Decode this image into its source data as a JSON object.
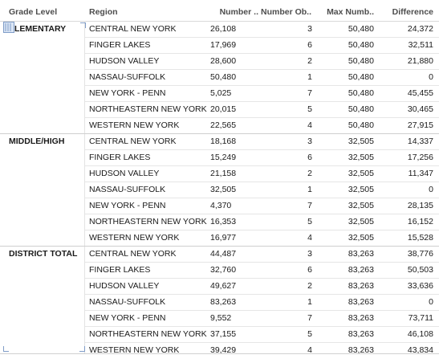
{
  "headers": {
    "grade_level": "Grade Level",
    "region": "Region",
    "number": "Number ..",
    "number_ob": "Number Ob..",
    "max_number": "Max Numb..",
    "difference": "Difference"
  },
  "groups": [
    {
      "label": "ELEMENTARY",
      "rows": [
        {
          "region": "CENTRAL NEW YORK",
          "number": "26,108",
          "number_ob": "3",
          "max": "50,480",
          "diff": "24,372"
        },
        {
          "region": "FINGER LAKES",
          "number": "17,969",
          "number_ob": "6",
          "max": "50,480",
          "diff": "32,511"
        },
        {
          "region": "HUDSON VALLEY",
          "number": "28,600",
          "number_ob": "2",
          "max": "50,480",
          "diff": "21,880"
        },
        {
          "region": "NASSAU-SUFFOLK",
          "number": "50,480",
          "number_ob": "1",
          "max": "50,480",
          "diff": "0"
        },
        {
          "region": "NEW YORK - PENN",
          "number": "5,025",
          "number_ob": "7",
          "max": "50,480",
          "diff": "45,455"
        },
        {
          "region": "NORTHEASTERN NEW YORK",
          "number": "20,015",
          "number_ob": "5",
          "max": "50,480",
          "diff": "30,465"
        },
        {
          "region": "WESTERN NEW YORK",
          "number": "22,565",
          "number_ob": "4",
          "max": "50,480",
          "diff": "27,915"
        }
      ]
    },
    {
      "label": "MIDDLE/HIGH",
      "rows": [
        {
          "region": "CENTRAL NEW YORK",
          "number": "18,168",
          "number_ob": "3",
          "max": "32,505",
          "diff": "14,337"
        },
        {
          "region": "FINGER LAKES",
          "number": "15,249",
          "number_ob": "6",
          "max": "32,505",
          "diff": "17,256"
        },
        {
          "region": "HUDSON VALLEY",
          "number": "21,158",
          "number_ob": "2",
          "max": "32,505",
          "diff": "11,347"
        },
        {
          "region": "NASSAU-SUFFOLK",
          "number": "32,505",
          "number_ob": "1",
          "max": "32,505",
          "diff": "0"
        },
        {
          "region": "NEW YORK - PENN",
          "number": "4,370",
          "number_ob": "7",
          "max": "32,505",
          "diff": "28,135"
        },
        {
          "region": "NORTHEASTERN NEW YORK",
          "number": "16,353",
          "number_ob": "5",
          "max": "32,505",
          "diff": "16,152"
        },
        {
          "region": "WESTERN NEW YORK",
          "number": "16,977",
          "number_ob": "4",
          "max": "32,505",
          "diff": "15,528"
        }
      ]
    },
    {
      "label": "DISTRICT TOTAL",
      "rows": [
        {
          "region": "CENTRAL NEW YORK",
          "number": "44,487",
          "number_ob": "3",
          "max": "83,263",
          "diff": "38,776"
        },
        {
          "region": "FINGER LAKES",
          "number": "32,760",
          "number_ob": "6",
          "max": "83,263",
          "diff": "50,503"
        },
        {
          "region": "HUDSON VALLEY",
          "number": "49,627",
          "number_ob": "2",
          "max": "83,263",
          "diff": "33,636"
        },
        {
          "region": "NASSAU-SUFFOLK",
          "number": "83,263",
          "number_ob": "1",
          "max": "83,263",
          "diff": "0"
        },
        {
          "region": "NEW YORK - PENN",
          "number": "9,552",
          "number_ob": "7",
          "max": "83,263",
          "diff": "73,711"
        },
        {
          "region": "NORTHEASTERN NEW YORK",
          "number": "37,155",
          "number_ob": "5",
          "max": "83,263",
          "diff": "46,108"
        },
        {
          "region": "WESTERN NEW YORK",
          "number": "39,429",
          "number_ob": "4",
          "max": "83,263",
          "diff": "43,834"
        }
      ]
    }
  ],
  "icons": {
    "selection_marker": "selection-grip-icon"
  }
}
